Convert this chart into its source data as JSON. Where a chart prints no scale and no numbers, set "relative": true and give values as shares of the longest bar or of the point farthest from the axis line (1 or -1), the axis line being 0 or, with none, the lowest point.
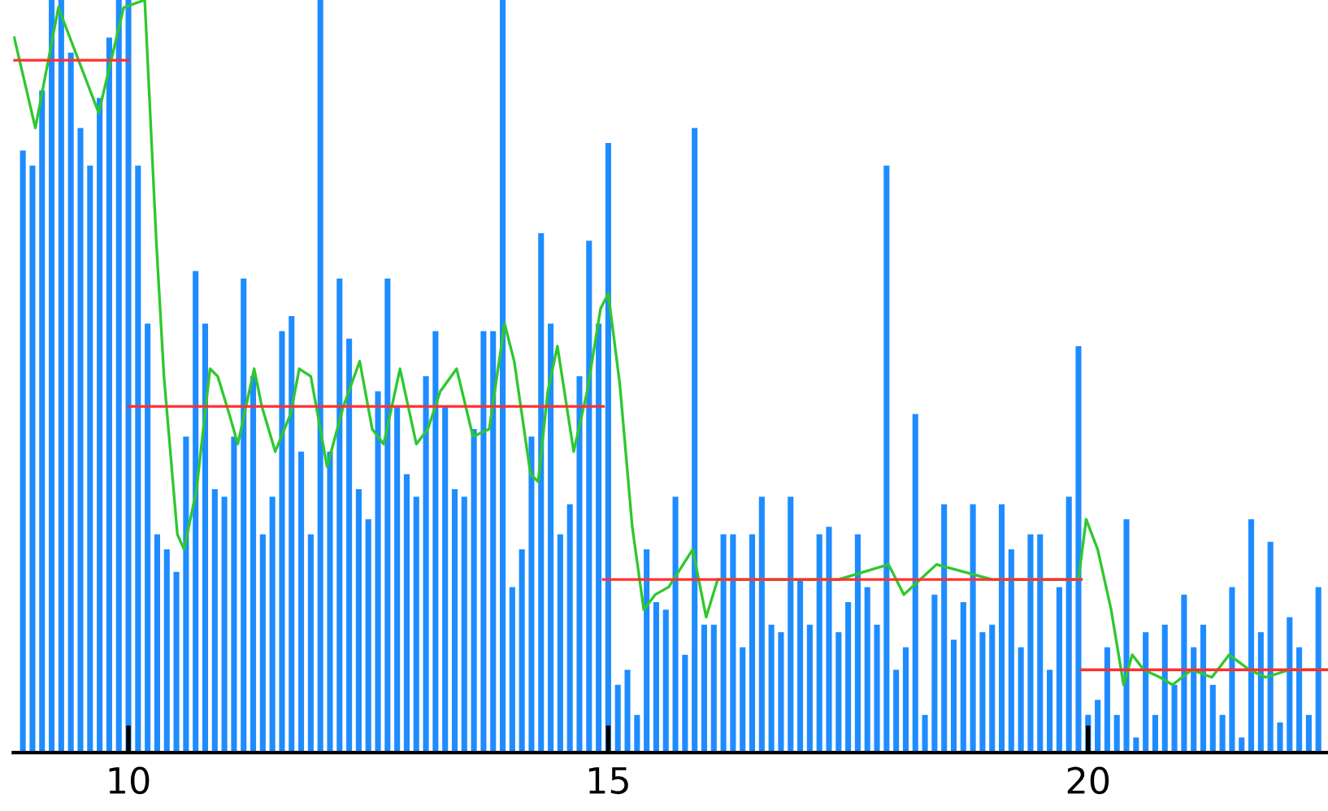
{
  "chart_data": {
    "type": "bar",
    "relative": true,
    "xlim": [
      8.8,
      22.5
    ],
    "xticks": [
      10,
      15,
      20
    ],
    "grid": false,
    "legend": false,
    "tick_labels": "x",
    "series": [
      {
        "color": "#1e8cff",
        "x": [
          8.9,
          9.0,
          9.1,
          9.2,
          9.3,
          9.4,
          9.5,
          9.6,
          9.7,
          9.8,
          9.9,
          10.0,
          10.1,
          10.2,
          10.3,
          10.4,
          10.5,
          10.6,
          10.7,
          10.8,
          10.9,
          11.0,
          11.1,
          11.2,
          11.3,
          11.4,
          11.5,
          11.6,
          11.7,
          11.8,
          11.9,
          12.0,
          12.1,
          12.2,
          12.3,
          12.4,
          12.5,
          12.6,
          12.7,
          12.8,
          12.9,
          13.0,
          13.1,
          13.2,
          13.3,
          13.4,
          13.5,
          13.6,
          13.7,
          13.8,
          13.9,
          14.0,
          14.1,
          14.2,
          14.3,
          14.4,
          14.5,
          14.6,
          14.7,
          14.8,
          14.9,
          15.0,
          15.1,
          15.2,
          15.3,
          15.4,
          15.5,
          15.6,
          15.7,
          15.8,
          15.9,
          16.0,
          16.1,
          16.2,
          16.3,
          16.4,
          16.5,
          16.6,
          16.7,
          16.8,
          16.9,
          17.0,
          17.1,
          17.2,
          17.3,
          17.4,
          17.5,
          17.6,
          17.7,
          17.8,
          17.9,
          18.0,
          18.1,
          18.2,
          18.3,
          18.4,
          18.5,
          18.6,
          18.7,
          18.8,
          18.9,
          19.0,
          19.1,
          19.2,
          19.3,
          19.4,
          19.5,
          19.6,
          19.7,
          19.8,
          19.9,
          20.0,
          20.1,
          20.2,
          20.3,
          20.4,
          20.5,
          20.6,
          20.7,
          20.8,
          20.9,
          21.0,
          21.1,
          21.2,
          21.3,
          21.4,
          21.5,
          21.6,
          21.7,
          21.8,
          21.9,
          22.0,
          22.1,
          22.2,
          22.3,
          22.4
        ],
        "values": [
          0.8,
          0.78,
          0.88,
          1,
          1,
          0.93,
          0.83,
          0.78,
          0.87,
          0.95,
          1,
          1,
          0.78,
          0.57,
          0.29,
          0.27,
          0.24,
          0.42,
          0.64,
          0.57,
          0.35,
          0.34,
          0.42,
          0.63,
          0.5,
          0.29,
          0.34,
          0.56,
          0.58,
          0.4,
          0.29,
          1,
          0.4,
          0.63,
          0.55,
          0.35,
          0.31,
          0.48,
          0.63,
          0.46,
          0.37,
          0.34,
          0.5,
          0.56,
          0.46,
          0.35,
          0.34,
          0.43,
          0.56,
          0.56,
          1,
          0.22,
          0.27,
          0.42,
          0.69,
          0.57,
          0.29,
          0.33,
          0.5,
          0.68,
          0.57,
          0.81,
          0.09,
          0.11,
          0.05,
          0.27,
          0.2,
          0.19,
          0.34,
          0.13,
          0.83,
          0.17,
          0.17,
          0.29,
          0.29,
          0.14,
          0.29,
          0.34,
          0.17,
          0.16,
          0.34,
          0.23,
          0.17,
          0.29,
          0.3,
          0.16,
          0.2,
          0.29,
          0.22,
          0.17,
          0.78,
          0.11,
          0.14,
          0.45,
          0.05,
          0.21,
          0.33,
          0.15,
          0.2,
          0.33,
          0.16,
          0.17,
          0.33,
          0.27,
          0.14,
          0.29,
          0.29,
          0.11,
          0.22,
          0.34,
          0.54,
          0.05,
          0.07,
          0.14,
          0.05,
          0.31,
          0.02,
          0.16,
          0.05,
          0.17,
          0.09,
          0.21,
          0.14,
          0.17,
          0.09,
          0.05,
          0.22,
          0.02,
          0.31,
          0.16,
          0.28,
          0.04,
          0.18,
          0.14,
          0.05,
          0.22
        ]
      },
      {
        "type": "line",
        "color": "#2ec82e",
        "x": [
          8.81,
          9.03,
          9.27,
          9.69,
          9.95,
          10.17,
          10.29,
          10.37,
          10.51,
          10.58,
          10.71,
          10.85,
          10.93,
          11.05,
          11.14,
          11.31,
          11.39,
          11.53,
          11.69,
          11.78,
          11.9,
          12.07,
          12.24,
          12.41,
          12.54,
          12.66,
          12.83,
          13.0,
          13.12,
          13.25,
          13.42,
          13.59,
          13.76,
          13.92,
          14.02,
          14.19,
          14.27,
          14.37,
          14.47,
          14.64,
          14.78,
          14.92,
          15.0,
          15.12,
          15.25,
          15.37,
          15.49,
          15.63,
          15.88,
          16.02,
          16.14,
          16.5,
          16.93,
          17.4,
          17.92,
          18.08,
          18.42,
          19.0,
          19.5,
          19.9,
          19.98,
          20.1,
          20.24,
          20.37,
          20.46,
          20.58,
          20.75,
          20.88,
          21.08,
          21.29,
          21.47,
          21.68,
          21.85,
          22.1,
          22.49
        ],
        "values": [
          0.95,
          0.83,
          0.99,
          0.85,
          0.99,
          1,
          0.68,
          0.5,
          0.29,
          0.27,
          0.35,
          0.51,
          0.5,
          0.45,
          0.41,
          0.51,
          0.46,
          0.4,
          0.45,
          0.51,
          0.5,
          0.38,
          0.46,
          0.52,
          0.43,
          0.41,
          0.51,
          0.41,
          0.43,
          0.48,
          0.51,
          0.42,
          0.43,
          0.57,
          0.52,
          0.37,
          0.36,
          0.48,
          0.54,
          0.4,
          0.48,
          0.59,
          0.61,
          0.49,
          0.3,
          0.19,
          0.21,
          0.22,
          0.27,
          0.18,
          0.23,
          0.23,
          0.23,
          0.23,
          0.25,
          0.21,
          0.25,
          0.23,
          0.23,
          0.23,
          0.31,
          0.27,
          0.19,
          0.09,
          0.13,
          0.11,
          0.1,
          0.09,
          0.11,
          0.1,
          0.13,
          0.11,
          0.1,
          0.11,
          0.11
        ]
      },
      {
        "type": "line",
        "color": "#ff3030",
        "x": [
          8.81,
          10.0
        ],
        "values": [
          0.92,
          0.92
        ]
      },
      {
        "type": "line",
        "color": "#ff3030",
        "x": [
          10.0,
          14.95
        ],
        "values": [
          0.46,
          0.46
        ]
      },
      {
        "type": "line",
        "color": "#ff3030",
        "x": [
          14.95,
          19.93
        ],
        "values": [
          0.23,
          0.23
        ]
      },
      {
        "type": "line",
        "color": "#ff3030",
        "x": [
          19.93,
          22.49
        ],
        "values": [
          0.11,
          0.11
        ]
      }
    ]
  }
}
